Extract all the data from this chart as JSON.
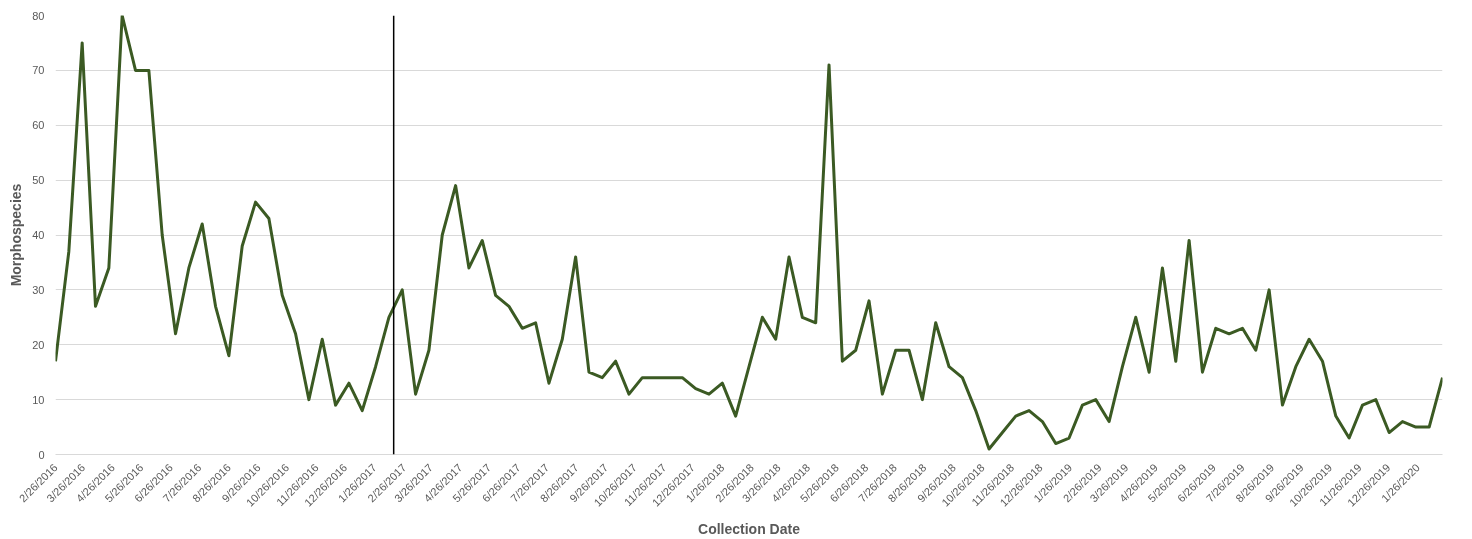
{
  "chart_data": {
    "type": "line",
    "xlabel": "Collection Date",
    "ylabel": "Morphospecies",
    "x": [
      "2016-02-26",
      "2016-03-11",
      "2016-03-25",
      "2016-04-08",
      "2016-04-22",
      "2016-05-06",
      "2016-05-20",
      "2016-06-03",
      "2016-06-17",
      "2016-07-01",
      "2016-07-15",
      "2016-07-29",
      "2016-08-12",
      "2016-08-26",
      "2016-09-09",
      "2016-09-23",
      "2016-10-07",
      "2016-10-21",
      "2016-11-04",
      "2016-11-18",
      "2016-12-02",
      "2016-12-16",
      "2016-12-30",
      "2017-01-13",
      "2017-01-27",
      "2017-02-10",
      "2017-02-24",
      "2017-03-10",
      "2017-03-24",
      "2017-04-07",
      "2017-04-21",
      "2017-05-05",
      "2017-05-19",
      "2017-06-02",
      "2017-06-16",
      "2017-06-30",
      "2017-07-14",
      "2017-07-28",
      "2017-08-11",
      "2017-08-25",
      "2017-09-08",
      "2017-09-22",
      "2017-10-06",
      "2017-10-20",
      "2017-11-03",
      "2017-11-17",
      "2017-12-01",
      "2017-12-15",
      "2017-12-29",
      "2018-01-12",
      "2018-01-26",
      "2018-02-09",
      "2018-02-23",
      "2018-03-09",
      "2018-03-23",
      "2018-04-06",
      "2018-04-20",
      "2018-05-04",
      "2018-05-18",
      "2018-06-01",
      "2018-06-15",
      "2018-06-29",
      "2018-07-13",
      "2018-07-27",
      "2018-08-10",
      "2018-08-24",
      "2018-09-07",
      "2018-09-21",
      "2018-10-05",
      "2018-10-19",
      "2018-11-02",
      "2018-11-16",
      "2018-11-30",
      "2018-12-14",
      "2018-12-28",
      "2019-01-11",
      "2019-01-25",
      "2019-02-08",
      "2019-02-22",
      "2019-03-08",
      "2019-03-22",
      "2019-04-05",
      "2019-04-19",
      "2019-05-03",
      "2019-05-17",
      "2019-05-31",
      "2019-06-14",
      "2019-06-28",
      "2019-07-12",
      "2019-07-26",
      "2019-08-09",
      "2019-08-23",
      "2019-09-06",
      "2019-09-20",
      "2019-10-04",
      "2019-10-18",
      "2019-11-01",
      "2019-11-15",
      "2019-11-29",
      "2019-12-13",
      "2019-12-27",
      "2020-01-10",
      "2020-01-24",
      "2020-02-07",
      "2020-02-21"
    ],
    "series": [
      {
        "color": "#3b5a23",
        "values": [
          17,
          37,
          75,
          27,
          34,
          80,
          70,
          70,
          40,
          22,
          34,
          42,
          27,
          18,
          38,
          46,
          43,
          29,
          22,
          10,
          21,
          9,
          13,
          8,
          16,
          25,
          30,
          11,
          19,
          40,
          49,
          34,
          39,
          29,
          27,
          23,
          24,
          13,
          21,
          36,
          15,
          14,
          17,
          11,
          14,
          14,
          14,
          14,
          12,
          11,
          13,
          7,
          16,
          25,
          21,
          36,
          25,
          24,
          71,
          17,
          19,
          28,
          11,
          19,
          19,
          10,
          24,
          16,
          14,
          8,
          1,
          4,
          7,
          8,
          6,
          2,
          3,
          9,
          10,
          6,
          16,
          25,
          15,
          34,
          17,
          39,
          15,
          23,
          22,
          23,
          19,
          30,
          9,
          16,
          21,
          17,
          7,
          3,
          9,
          10,
          4,
          6,
          5,
          5,
          14
        ]
      }
    ],
    "xlim": [
      "2016-02-26",
      "2020-02-21"
    ],
    "xticks": [
      {
        "value": "2016-02-26",
        "label": "2/26/2016"
      },
      {
        "value": "2016-03-26",
        "label": "3/26/2016"
      },
      {
        "value": "2016-04-26",
        "label": "4/26/2016"
      },
      {
        "value": "2016-05-26",
        "label": "5/26/2016"
      },
      {
        "value": "2016-06-26",
        "label": "6/26/2016"
      },
      {
        "value": "2016-07-26",
        "label": "7/26/2016"
      },
      {
        "value": "2016-08-26",
        "label": "8/26/2016"
      },
      {
        "value": "2016-09-26",
        "label": "9/26/2016"
      },
      {
        "value": "2016-10-26",
        "label": "10/26/2016"
      },
      {
        "value": "2016-11-26",
        "label": "11/26/2016"
      },
      {
        "value": "2016-12-26",
        "label": "12/26/2016"
      },
      {
        "value": "2017-01-26",
        "label": "1/26/2017"
      },
      {
        "value": "2017-02-26",
        "label": "2/26/2017"
      },
      {
        "value": "2017-03-26",
        "label": "3/26/2017"
      },
      {
        "value": "2017-04-26",
        "label": "4/26/2017"
      },
      {
        "value": "2017-05-26",
        "label": "5/26/2017"
      },
      {
        "value": "2017-06-26",
        "label": "6/26/2017"
      },
      {
        "value": "2017-07-26",
        "label": "7/26/2017"
      },
      {
        "value": "2017-08-26",
        "label": "8/26/2017"
      },
      {
        "value": "2017-09-26",
        "label": "9/26/2017"
      },
      {
        "value": "2017-10-26",
        "label": "10/26/2017"
      },
      {
        "value": "2017-11-26",
        "label": "11/26/2017"
      },
      {
        "value": "2017-12-26",
        "label": "12/26/2017"
      },
      {
        "value": "2018-01-26",
        "label": "1/26/2018"
      },
      {
        "value": "2018-02-26",
        "label": "2/26/2018"
      },
      {
        "value": "2018-03-26",
        "label": "3/26/2018"
      },
      {
        "value": "2018-04-26",
        "label": "4/26/2018"
      },
      {
        "value": "2018-05-26",
        "label": "5/26/2018"
      },
      {
        "value": "2018-06-26",
        "label": "6/26/2018"
      },
      {
        "value": "2018-07-26",
        "label": "7/26/2018"
      },
      {
        "value": "2018-08-26",
        "label": "8/26/2018"
      },
      {
        "value": "2018-09-26",
        "label": "9/26/2018"
      },
      {
        "value": "2018-10-26",
        "label": "10/26/2018"
      },
      {
        "value": "2018-11-26",
        "label": "11/26/2018"
      },
      {
        "value": "2018-12-26",
        "label": "12/26/2018"
      },
      {
        "value": "2019-01-26",
        "label": "1/26/2019"
      },
      {
        "value": "2019-02-26",
        "label": "2/26/2019"
      },
      {
        "value": "2019-03-26",
        "label": "3/26/2019"
      },
      {
        "value": "2019-04-26",
        "label": "4/26/2019"
      },
      {
        "value": "2019-05-26",
        "label": "5/26/2019"
      },
      {
        "value": "2019-06-26",
        "label": "6/26/2019"
      },
      {
        "value": "2019-07-26",
        "label": "7/26/2019"
      },
      {
        "value": "2019-08-26",
        "label": "8/26/2019"
      },
      {
        "value": "2019-09-26",
        "label": "9/26/2019"
      },
      {
        "value": "2019-10-26",
        "label": "10/26/2019"
      },
      {
        "value": "2019-11-26",
        "label": "11/26/2019"
      },
      {
        "value": "2019-12-26",
        "label": "12/26/2019"
      },
      {
        "value": "2020-01-26",
        "label": "1/26/2020"
      }
    ],
    "ylim": [
      0,
      80
    ],
    "yticks": [
      0,
      10,
      20,
      30,
      40,
      50,
      60,
      70,
      80
    ],
    "grid": "y",
    "marker": "none",
    "line_style": "solid",
    "ref_lines": [
      {
        "axis": "x",
        "value": "2017-02-15",
        "color": "#000000"
      }
    ]
  }
}
